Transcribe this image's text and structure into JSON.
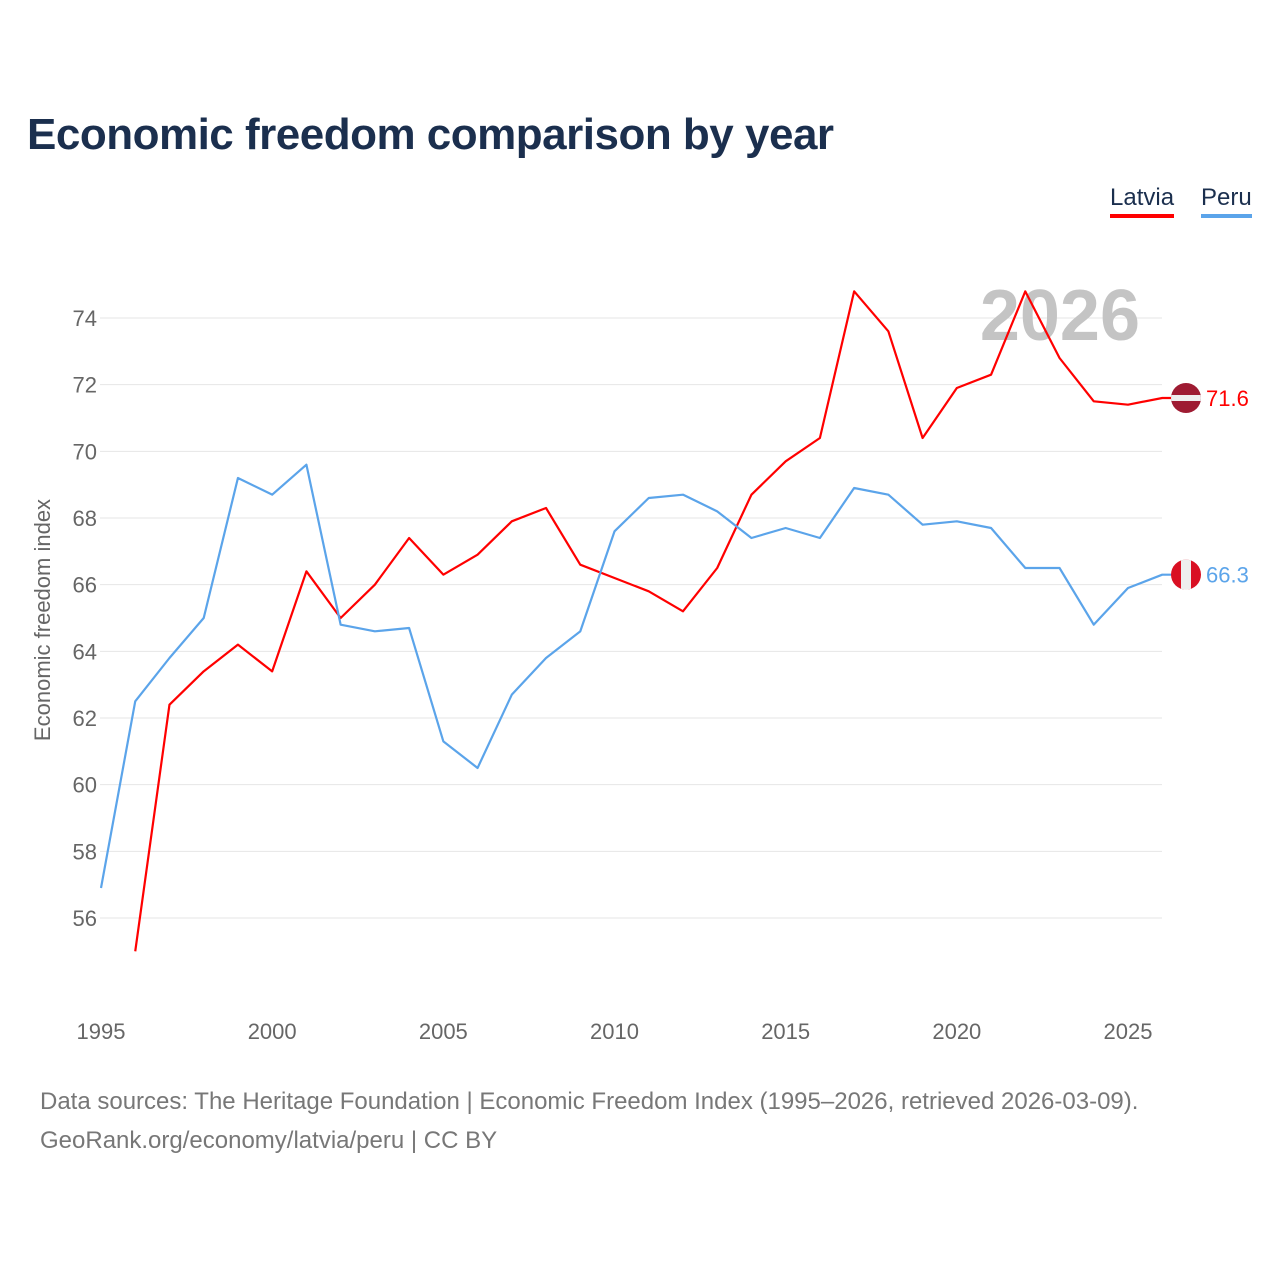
{
  "chart_data": {
    "type": "line",
    "title": "Economic freedom comparison by year",
    "ylabel": "Economic freedom index",
    "xlabel": "",
    "ylim": [
      54.7,
      75.3
    ],
    "xlim": [
      1995,
      2026
    ],
    "yticks": [
      56,
      58,
      60,
      62,
      64,
      66,
      68,
      70,
      72,
      74
    ],
    "xticks": [
      1995,
      2000,
      2005,
      2010,
      2015,
      2020,
      2025
    ],
    "grid": true,
    "legend_placement": "top-right",
    "year_watermark": "2026",
    "series": [
      {
        "name": "Latvia",
        "color": "#ff0000",
        "end_label": "71.6",
        "x": [
          1996,
          1997,
          1998,
          1999,
          2000,
          2001,
          2002,
          2003,
          2004,
          2005,
          2006,
          2007,
          2008,
          2009,
          2010,
          2011,
          2012,
          2013,
          2014,
          2015,
          2016,
          2017,
          2018,
          2019,
          2020,
          2021,
          2022,
          2023,
          2024,
          2025,
          2026
        ],
        "values": [
          55.0,
          62.4,
          63.4,
          64.2,
          63.4,
          66.4,
          65.0,
          66.0,
          67.4,
          66.3,
          66.9,
          67.9,
          68.3,
          66.6,
          66.2,
          65.8,
          65.2,
          66.5,
          68.7,
          69.7,
          70.4,
          74.8,
          73.6,
          70.4,
          71.9,
          72.3,
          74.8,
          72.8,
          71.5,
          71.4,
          71.6
        ]
      },
      {
        "name": "Peru",
        "color": "#5ba4ea",
        "end_label": "66.3",
        "x": [
          1995,
          1996,
          1997,
          1998,
          1999,
          2000,
          2001,
          2002,
          2003,
          2004,
          2005,
          2006,
          2007,
          2008,
          2009,
          2010,
          2011,
          2012,
          2013,
          2014,
          2015,
          2016,
          2017,
          2018,
          2019,
          2020,
          2021,
          2022,
          2023,
          2024,
          2025,
          2026
        ],
        "values": [
          56.9,
          62.5,
          63.8,
          65.0,
          69.2,
          68.7,
          69.6,
          64.8,
          64.6,
          64.7,
          61.3,
          60.5,
          62.7,
          63.8,
          64.6,
          67.6,
          68.6,
          68.7,
          68.2,
          67.4,
          67.7,
          67.4,
          68.9,
          68.7,
          67.8,
          67.9,
          67.7,
          66.5,
          66.5,
          64.8,
          65.9,
          66.3
        ]
      }
    ]
  },
  "legend": {
    "latvia": "Latvia",
    "peru": "Peru"
  },
  "footer": {
    "sources": "Data sources: The Heritage Foundation | Economic Freedom Index (1995–2026, retrieved 2026-03-09).",
    "credit": "GeoRank.org/economy/latvia/peru | CC BY"
  }
}
